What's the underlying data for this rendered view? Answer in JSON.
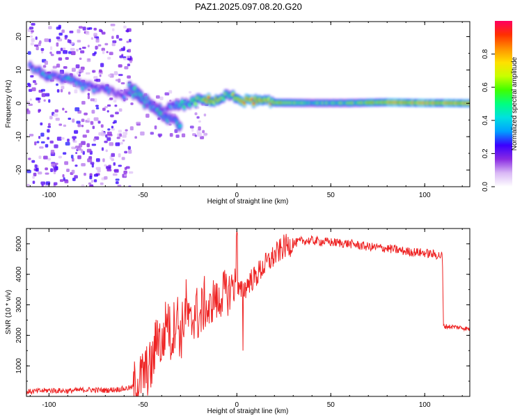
{
  "title": "PAZ1.2025.097.08.20.G20",
  "chart_data": [
    {
      "type": "heatmap",
      "xlabel": "Height of straight line (km)",
      "ylabel": "Frequency (Hz)",
      "xlim": [
        -112,
        124
      ],
      "ylim": [
        -25,
        24.5
      ],
      "xticks": [
        -100,
        -50,
        0,
        50,
        100
      ],
      "yticks": [
        -20,
        -10,
        0,
        10,
        20
      ],
      "colorbar": {
        "label": "Normalized spectral amplitude",
        "range": [
          0,
          1
        ],
        "ticks": [
          "0.0",
          "0.2",
          "0.4",
          "0.6",
          "0.8"
        ],
        "colors": [
          "#ffffff",
          "#d9b8f5",
          "#8a2be2",
          "#3a00ff",
          "#00a0ff",
          "#00e0e0",
          "#00ff80",
          "#40ff00",
          "#c8ff00",
          "#ffe000",
          "#ff9000",
          "#ff3000",
          "#ff0060"
        ]
      },
      "ridge": {
        "height_km": [
          -110,
          -100,
          -90,
          -80,
          -70,
          -60,
          -55,
          -50,
          -45,
          -40,
          -35,
          -30,
          -25,
          -20,
          -15,
          -10,
          -5,
          0,
          5,
          10,
          20,
          40,
          60,
          80,
          100,
          110,
          124
        ],
        "frequency_hz": [
          11,
          8,
          7,
          5,
          4,
          2.5,
          3,
          0.5,
          -1,
          -2,
          -1,
          -0.5,
          0,
          1,
          1,
          1,
          2.5,
          1.5,
          0.7,
          0.7,
          0.2,
          0.1,
          0.1,
          0.3,
          0.1,
          0.1,
          0
        ],
        "amplitude": [
          0.35,
          0.35,
          0.4,
          0.35,
          0.35,
          0.3,
          0.4,
          0.45,
          0.45,
          0.35,
          0.3,
          0.45,
          0.45,
          0.7,
          0.8,
          0.8,
          0.55,
          0.75,
          0.9,
          0.9,
          0.8,
          0.55,
          0.6,
          0.85,
          0.9,
          0.85,
          0.85
        ]
      },
      "branches": [
        {
          "height_km": [
            -57,
            -50,
            -45,
            -40,
            -38
          ],
          "frequency_hz": [
            5,
            2,
            -1,
            -3,
            -4
          ]
        },
        {
          "height_km": [
            -47,
            -42,
            -38,
            -33,
            -30
          ],
          "frequency_hz": [
            0,
            -2,
            -4,
            -5,
            -7
          ]
        }
      ]
    },
    {
      "type": "line",
      "xlabel": "Height of straight line (km)",
      "ylabel": "SNR (10 * v/v)",
      "xlim": [
        -112,
        124
      ],
      "ylim": [
        0,
        5500
      ],
      "xticks": [
        -100,
        -50,
        0,
        50,
        100
      ],
      "yticks": [
        1000,
        2000,
        3000,
        4000,
        5000
      ],
      "color": "#ee2222",
      "series": [
        {
          "name": "SNR",
          "x": [
            -112,
            -100,
            -90,
            -80,
            -70,
            -60,
            -55,
            -52,
            -50,
            -47,
            -45,
            -42,
            -40,
            -37,
            -35,
            -32,
            -30,
            -27,
            -25,
            -22,
            -20,
            -17,
            -15,
            -12,
            -10,
            -7,
            -5,
            -2,
            0,
            2,
            5,
            7,
            10,
            12,
            15,
            20,
            25,
            30,
            35,
            40,
            50,
            60,
            70,
            80,
            90,
            100,
            105,
            109.5,
            110,
            115,
            120,
            124
          ],
          "y": [
            150,
            200,
            180,
            220,
            200,
            250,
            300,
            500,
            700,
            900,
            1000,
            2200,
            1500,
            2700,
            1800,
            2800,
            1900,
            3000,
            2200,
            2900,
            2500,
            3100,
            2700,
            3300,
            3000,
            3500,
            3300,
            3700,
            3500,
            3400,
            3600,
            3800,
            3900,
            4100,
            4300,
            4600,
            4900,
            5000,
            5100,
            5100,
            5050,
            5000,
            4900,
            4850,
            4750,
            4700,
            4650,
            4600,
            2300,
            2280,
            2250,
            2200
          ]
        }
      ]
    }
  ]
}
